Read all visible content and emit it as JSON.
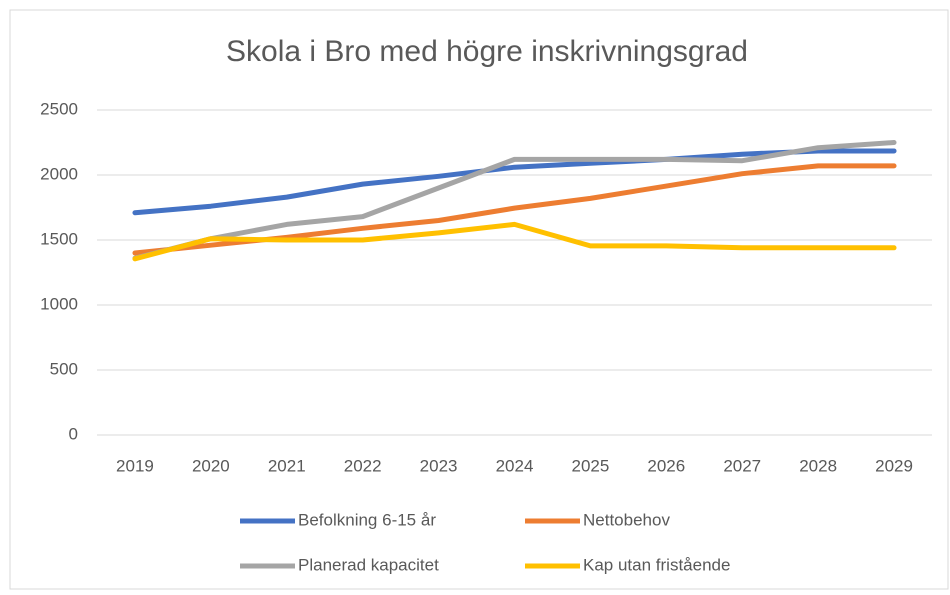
{
  "chart_data": {
    "type": "line",
    "title": "Skola i Bro med högre inskrivningsgrad",
    "categories": [
      "2019",
      "2020",
      "2021",
      "2022",
      "2023",
      "2024",
      "2025",
      "2026",
      "2027",
      "2028",
      "2029"
    ],
    "series": [
      {
        "name": "Befolkning 6-15 år",
        "color": "#4472c4",
        "values": [
          1710,
          1760,
          1830,
          1930,
          1990,
          2060,
          2090,
          2120,
          2160,
          2185,
          2185
        ]
      },
      {
        "name": "Nettobehov",
        "color": "#ed7d31",
        "values": [
          1400,
          1460,
          1520,
          1590,
          1650,
          1745,
          1820,
          1915,
          2010,
          2070,
          2070
        ]
      },
      {
        "name": "Planerad kapacitet",
        "color": "#a5a5a5",
        "values": [
          1360,
          1510,
          1620,
          1680,
          1900,
          2120,
          2120,
          2120,
          2110,
          2210,
          2250
        ]
      },
      {
        "name": "Kap utan fristående",
        "color": "#ffc000",
        "values": [
          1355,
          1510,
          1500,
          1500,
          1555,
          1620,
          1455,
          1455,
          1440,
          1440,
          1440
        ]
      }
    ],
    "ylim": [
      0,
      2500
    ],
    "yticks": [
      0,
      500,
      1000,
      1500,
      2000,
      2500
    ],
    "grid": true,
    "legend": "bottom"
  }
}
